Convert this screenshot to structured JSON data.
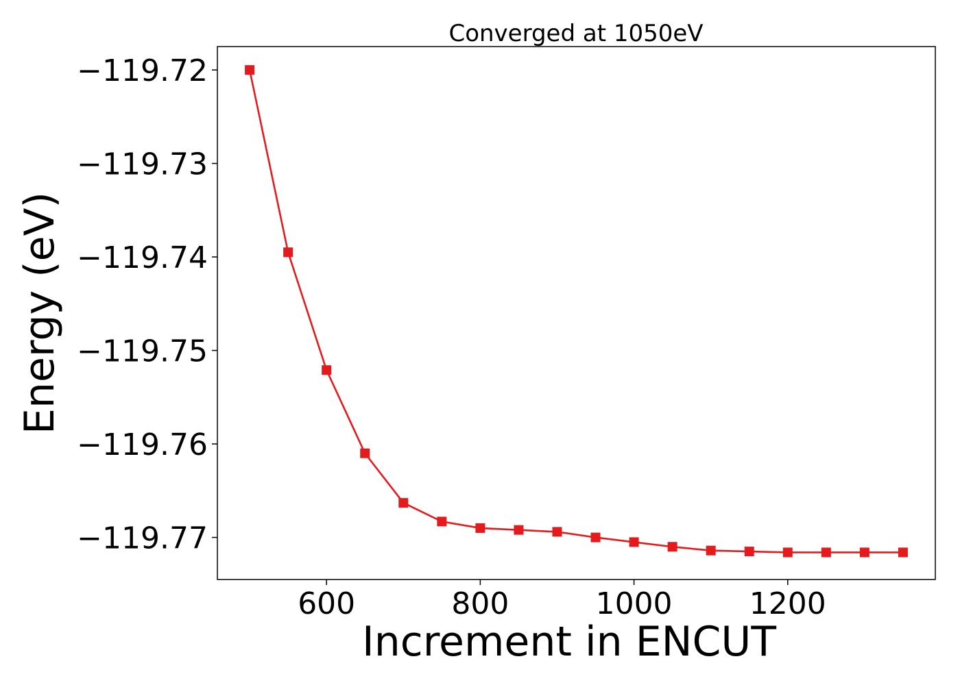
{
  "chart_data": {
    "type": "line",
    "title": "Converged at 1050eV",
    "xlabel": "Increment in ENCUT",
    "ylabel": "Energy (eV)",
    "xlim": [
      458,
      1392
    ],
    "ylim": [
      -119.7745,
      -119.7175
    ],
    "x_ticks": [
      600,
      800,
      1000,
      1200
    ],
    "x_tick_labels": [
      "600",
      "800",
      "1000",
      "1200"
    ],
    "y_ticks": [
      -119.72,
      -119.73,
      -119.74,
      -119.75,
      -119.76,
      -119.77
    ],
    "y_tick_labels": [
      "−119.72",
      "−119.73",
      "−119.74",
      "−119.75",
      "−119.76",
      "−119.77"
    ],
    "grid": false,
    "legend": "none",
    "series": [
      {
        "color": "#e41a1c",
        "marker": "square",
        "x": [
          500,
          550,
          600,
          650,
          700,
          750,
          800,
          850,
          900,
          950,
          1000,
          1050,
          1100,
          1150,
          1200,
          1250,
          1300,
          1350
        ],
        "y": [
          -119.72,
          -119.7395,
          -119.7521,
          -119.761,
          -119.7663,
          -119.7683,
          -119.769,
          -119.7692,
          -119.7694,
          -119.77,
          -119.7705,
          -119.771,
          -119.7714,
          -119.7715,
          -119.7716,
          -119.7716,
          -119.7716,
          -119.7716
        ]
      }
    ]
  }
}
